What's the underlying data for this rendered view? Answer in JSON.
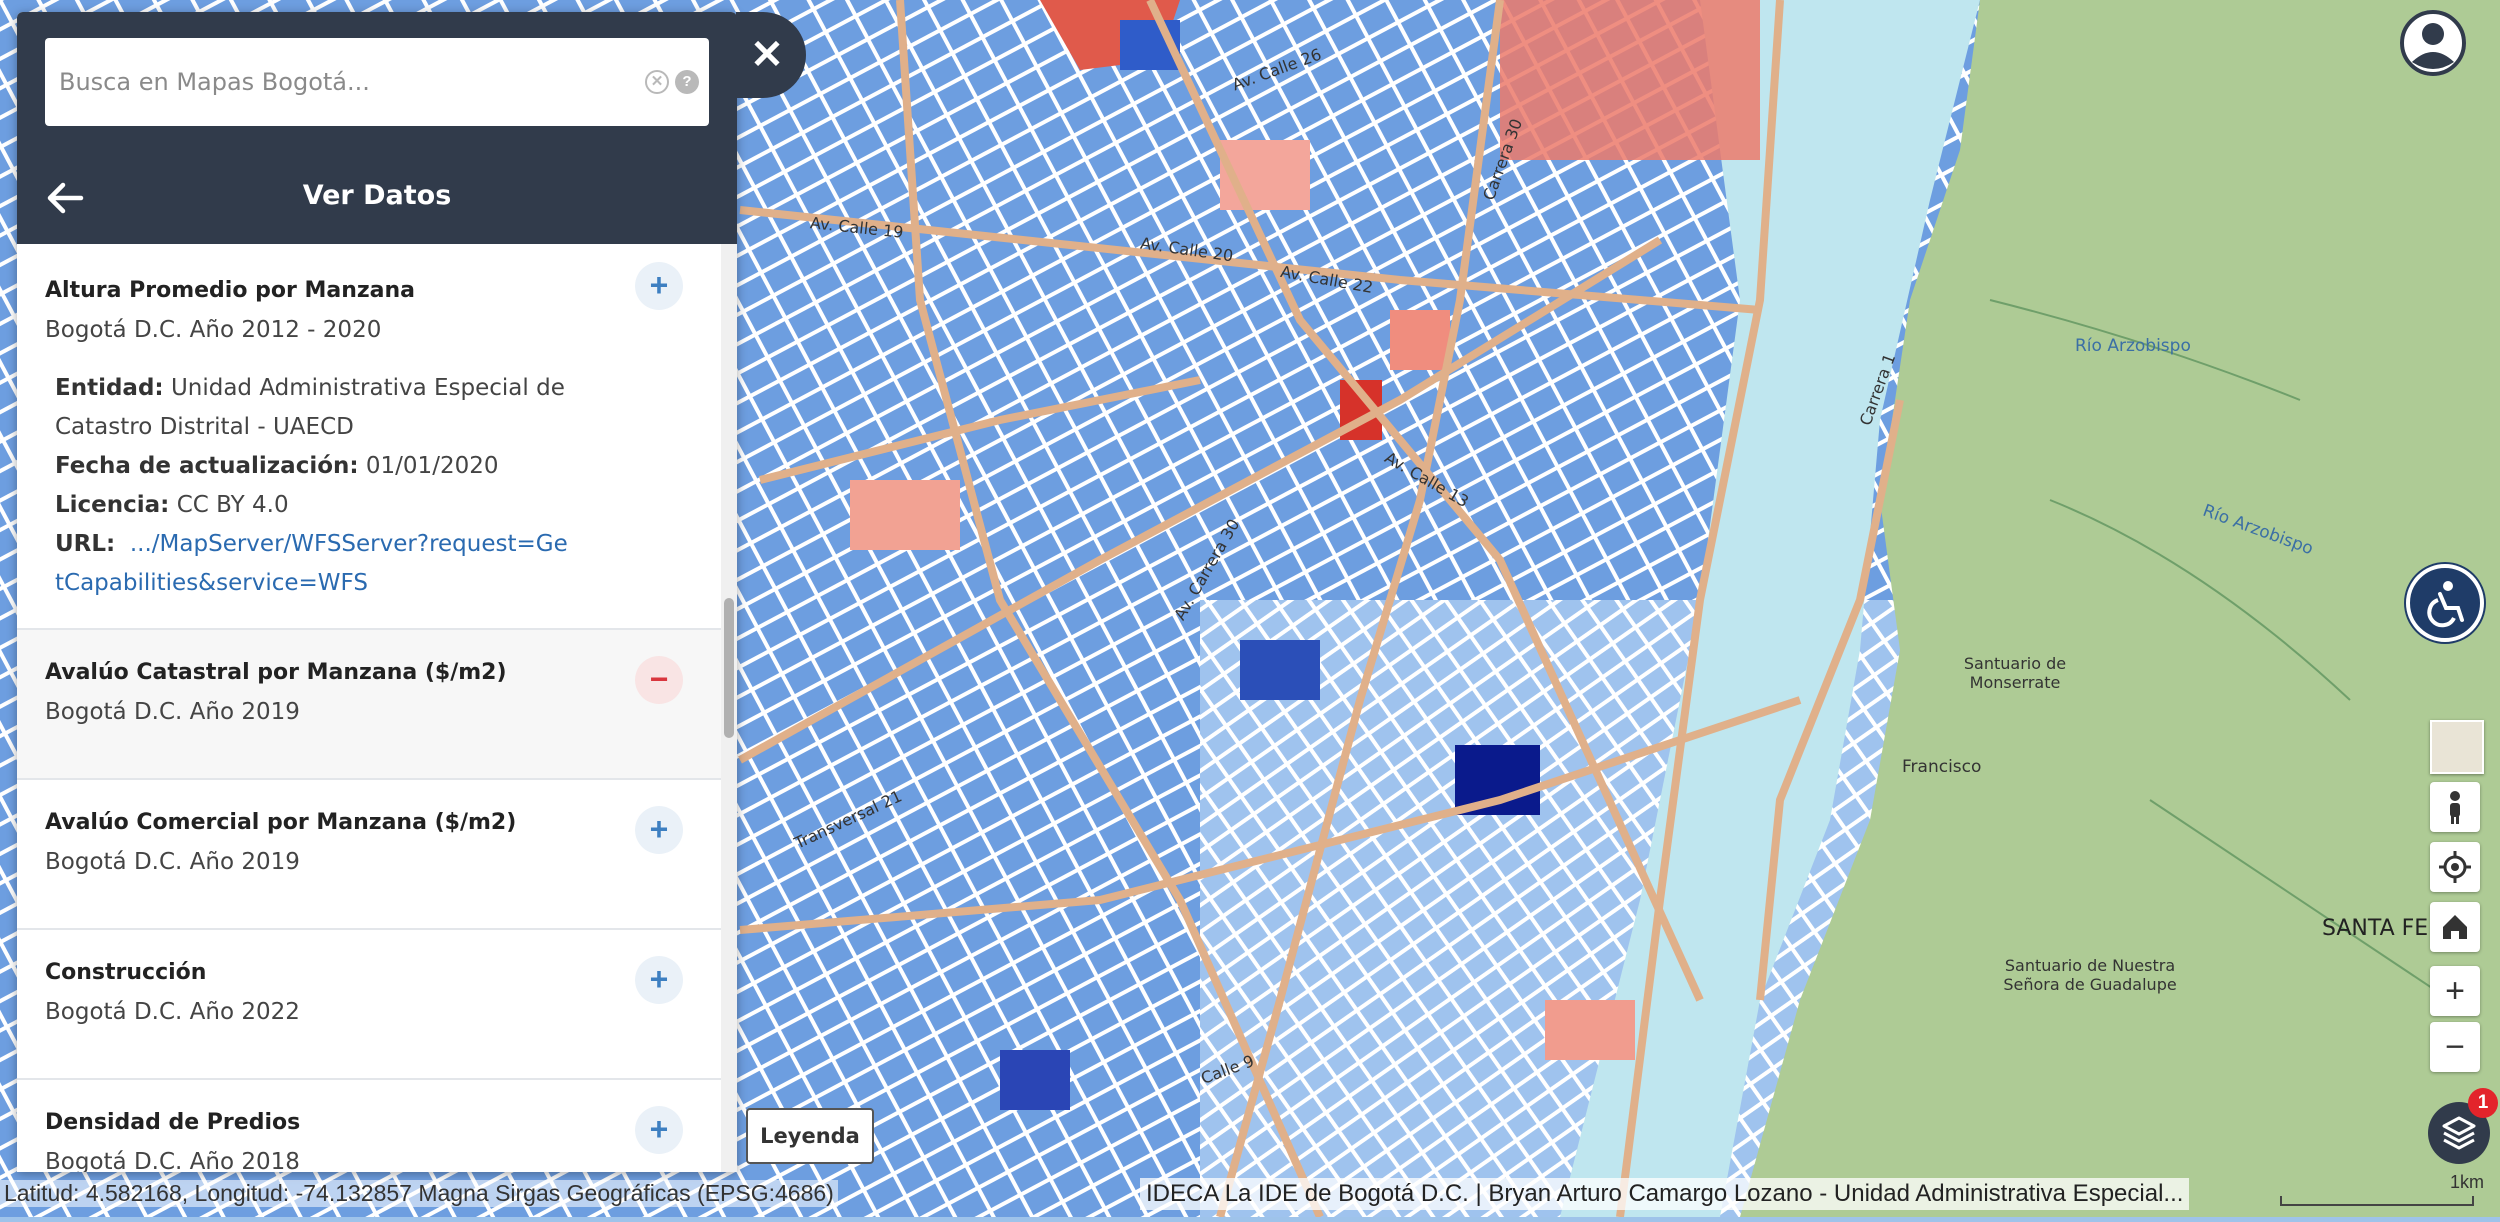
{
  "search": {
    "placeholder": "Busca en Mapas Bogotá..."
  },
  "panel": {
    "title": "Ver Datos",
    "items": [
      {
        "title": "Altura Promedio por Manzana",
        "subtitle": "Bogotá D.C. Año 2012 - 2020",
        "button": "+",
        "details": {
          "entidad_label": "Entidad:",
          "entidad": "Unidad Administrativa Especial de Catastro Distrital - UAECD",
          "fecha_label": "Fecha de actualización:",
          "fecha": "01/01/2020",
          "licencia_label": "Licencia:",
          "licencia": "CC BY 4.0",
          "url_label": "URL:",
          "url": ".../MapServer/WFSServer?request=GetCapabilities&service=WFS"
        }
      },
      {
        "title": "Avalúo Catastral por Manzana ($/m2)",
        "subtitle": "Bogotá D.C. Año 2019",
        "button": "−"
      },
      {
        "title": "Avalúo Comercial por Manzana ($/m2)",
        "subtitle": "Bogotá D.C. Año 2019",
        "button": "+"
      },
      {
        "title": "Construcción",
        "subtitle": "Bogotá D.C. Año 2022",
        "button": "+"
      },
      {
        "title": "Densidad de Predios",
        "subtitle": "Bogotá D.C. Año 2018",
        "button": "+"
      }
    ]
  },
  "map": {
    "street_labels": [
      "Av. Calle 26",
      "Carrera 30",
      "Av. Calle 19",
      "Av. Calle 20",
      "Av. Calle 13",
      "Av. Carrera 30",
      "Calle 9",
      "Transversal 21",
      "Carrera 1",
      "Av. Calle 22"
    ],
    "place_labels": [
      "Río Arzobispo",
      "Río Arzobispo",
      "Santuario de Monserrate",
      "Santuario de Nuestra Señora de Guadalupe",
      "SANTA FE",
      "Francisco"
    ],
    "colors": {
      "park": "#aecb95",
      "low": "#3a6fd0",
      "high": "#e05a4b",
      "road": "#e0b08a"
    }
  },
  "controls": {
    "legend_label": "Leyenda",
    "layers_badge": "1",
    "zoom_in": "+",
    "zoom_out": "−"
  },
  "footer": {
    "coords": "Latitud: 4.582168, Longitud: -74.132857 Magna Sirgas Geográficas (EPSG:4686)",
    "attribution": "IDECA La IDE de Bogotá D.C. | Bryan Arturo Camargo Lozano - Unidad Administrativa Especial...",
    "scale": "1km"
  }
}
